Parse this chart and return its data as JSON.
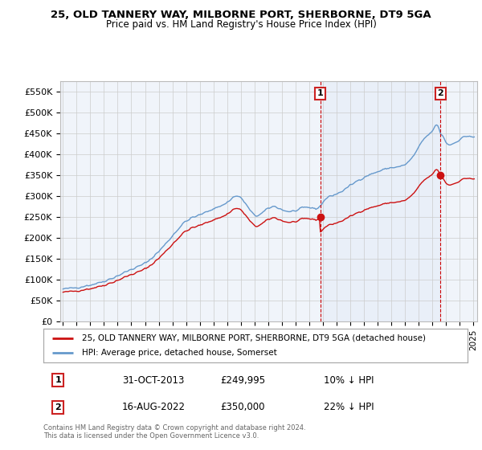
{
  "title": "25, OLD TANNERY WAY, MILBORNE PORT, SHERBORNE, DT9 5GA",
  "subtitle": "Price paid vs. HM Land Registry's House Price Index (HPI)",
  "footer": "Contains HM Land Registry data © Crown copyright and database right 2024.\nThis data is licensed under the Open Government Licence v3.0.",
  "legend_line1": "25, OLD TANNERY WAY, MILBORNE PORT, SHERBORNE, DT9 5GA (detached house)",
  "legend_line2": "HPI: Average price, detached house, Somerset",
  "annotation1_date": "31-OCT-2013",
  "annotation1_price": "£249,995",
  "annotation1_hpi": "10% ↓ HPI",
  "annotation2_date": "16-AUG-2022",
  "annotation2_price": "£350,000",
  "annotation2_hpi": "22% ↓ HPI",
  "hpi_color": "#6699cc",
  "price_color": "#cc1111",
  "vline_color": "#cc0000",
  "shade_color": "#dde8f5",
  "background_color": "#f0f4fa",
  "grid_color": "#cccccc",
  "ylim": [
    0,
    575000
  ],
  "yticks": [
    0,
    50000,
    100000,
    150000,
    200000,
    250000,
    300000,
    350000,
    400000,
    450000,
    500000,
    550000
  ],
  "ytick_labels": [
    "£0",
    "£50K",
    "£100K",
    "£150K",
    "£200K",
    "£250K",
    "£300K",
    "£350K",
    "£400K",
    "£450K",
    "£500K",
    "£550K"
  ],
  "sale1_x": 2013.83,
  "sale1_y": 249995,
  "sale2_x": 2022.62,
  "sale2_y": 350000,
  "xlim": [
    1994.8,
    2025.3
  ]
}
